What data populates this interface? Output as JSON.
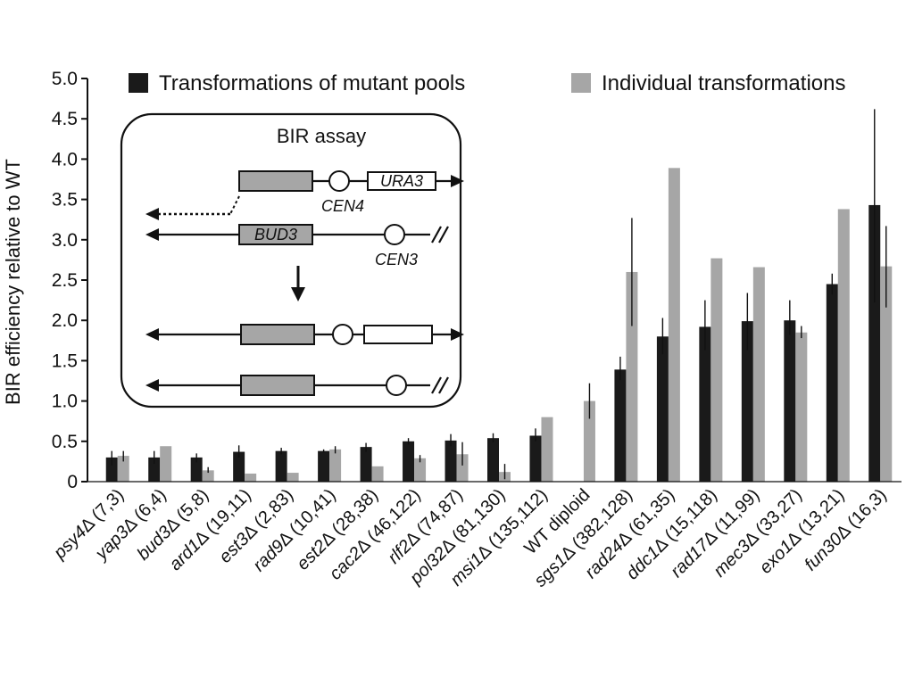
{
  "chart_data": {
    "type": "bar",
    "ylabel": "BIR efficiency relative to WT",
    "ylim": [
      0,
      5.0
    ],
    "yticks": [
      "0",
      "0.5",
      "1.0",
      "1.5",
      "2.0",
      "2.5",
      "3.0",
      "3.5",
      "4.0",
      "4.5",
      "5.0"
    ],
    "categories": [
      {
        "gene": "psy4",
        "delta": "Δ",
        "counts": " (7,3)"
      },
      {
        "gene": "yap3",
        "delta": "Δ",
        "counts": " (6,4)"
      },
      {
        "gene": "bud3",
        "delta": "Δ",
        "counts": " (5,8)"
      },
      {
        "gene": "ard1",
        "delta": "Δ",
        "counts": " (19,11)"
      },
      {
        "gene": "est3",
        "delta": "Δ",
        "counts": " (2,83)"
      },
      {
        "gene": "rad9",
        "delta": "Δ",
        "counts": " (10,41)"
      },
      {
        "gene": "est2",
        "delta": "Δ",
        "counts": " (28,38)"
      },
      {
        "gene": "cac2",
        "delta": "Δ",
        "counts": " (46,122)"
      },
      {
        "gene": "rlf2",
        "delta": "Δ",
        "counts": " (74,87)"
      },
      {
        "gene": "pol32",
        "delta": "Δ",
        "counts": " (81,130)"
      },
      {
        "gene": "msi1",
        "delta": "Δ",
        "counts": " (135,112)"
      },
      {
        "gene": "",
        "delta": "",
        "counts": "WT diploid"
      },
      {
        "gene": "sgs1",
        "delta": "Δ",
        "counts": " (382,128)"
      },
      {
        "gene": "rad24",
        "delta": "Δ",
        "counts": " (61,35)"
      },
      {
        "gene": "ddc1",
        "delta": "Δ",
        "counts": " (15,118)"
      },
      {
        "gene": "rad17",
        "delta": "Δ",
        "counts": " (11,99)"
      },
      {
        "gene": "mec3",
        "delta": "Δ",
        "counts": " (33,27)"
      },
      {
        "gene": "exo1",
        "delta": "Δ",
        "counts": " (13,21)"
      },
      {
        "gene": "fun30",
        "delta": "Δ",
        "counts": " (16,3)"
      }
    ],
    "series": [
      {
        "name": "Transformations of mutant pools",
        "color": "#1a1a1a",
        "values": [
          0.3,
          0.3,
          0.3,
          0.37,
          0.38,
          0.38,
          0.43,
          0.5,
          0.51,
          0.54,
          0.57,
          null,
          1.39,
          1.8,
          1.92,
          1.99,
          2.0,
          2.45,
          3.43
        ],
        "err_low": [
          0.2,
          0.22,
          0.24,
          0.3,
          0.34,
          0.36,
          0.37,
          0.46,
          0.44,
          0.49,
          0.5,
          null,
          1.26,
          1.58,
          1.63,
          1.63,
          1.82,
          2.32,
          2.22
        ],
        "err_high": [
          0.38,
          0.38,
          0.35,
          0.45,
          0.42,
          0.4,
          0.48,
          0.54,
          0.59,
          0.6,
          0.66,
          null,
          1.55,
          2.03,
          2.25,
          2.34,
          2.25,
          2.58,
          4.62
        ]
      },
      {
        "name": "Individual transformations",
        "color": "#a6a6a6",
        "values": [
          0.32,
          0.44,
          0.14,
          0.1,
          0.11,
          0.4,
          0.19,
          0.29,
          0.34,
          0.12,
          0.8,
          1.0,
          2.6,
          3.89,
          2.77,
          2.66,
          1.85,
          3.38,
          2.67
        ],
        "err_low": [
          0.25,
          null,
          0.11,
          null,
          null,
          0.35,
          null,
          0.24,
          0.2,
          0.03,
          null,
          0.78,
          1.93,
          null,
          null,
          null,
          1.78,
          null,
          2.16
        ],
        "err_high": [
          0.38,
          null,
          0.18,
          null,
          null,
          0.44,
          null,
          0.33,
          0.49,
          0.22,
          null,
          1.22,
          3.27,
          null,
          null,
          null,
          1.93,
          null,
          3.17
        ]
      }
    ],
    "legend": {
      "position": "top"
    },
    "inset": {
      "title": "BIR assay",
      "labels": {
        "ura3": "URA3",
        "cen4": "CEN4",
        "bud3": "BUD3",
        "cen3": "CEN3"
      }
    }
  }
}
